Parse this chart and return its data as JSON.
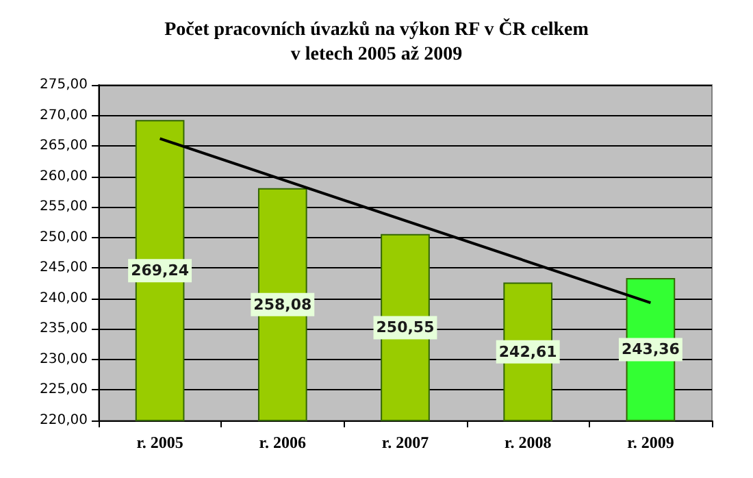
{
  "chart_data": {
    "type": "bar",
    "title": "Počet pracovních úvazků na výkon RF v ČR celkem\nv letech 2005 až 2009",
    "categories": [
      "r. 2005",
      "r. 2006",
      "r. 2007",
      "r. 2008",
      "r. 2009"
    ],
    "series": [
      {
        "values": [
          269.24,
          258.08,
          250.55,
          242.61,
          243.36
        ],
        "colors": [
          "#99cc00",
          "#99cc00",
          "#99cc00",
          "#99cc00",
          "#33ff33"
        ],
        "value_labels": [
          "269,24",
          "258,08",
          "250,55",
          "242,61",
          "243,36"
        ]
      },
      {
        "type": "line",
        "x": [
          "r. 2005",
          "r. 2009"
        ],
        "values": [
          266.2,
          239.3
        ],
        "color": "#000000",
        "marker": "none",
        "line_style": "solid"
      }
    ],
    "ylim": [
      220,
      275
    ],
    "yticks": [
      {
        "value": 220,
        "label": "220,00"
      },
      {
        "value": 225,
        "label": "225,00"
      },
      {
        "value": 230,
        "label": "230,00"
      },
      {
        "value": 235,
        "label": "235,00"
      },
      {
        "value": 240,
        "label": "240,00"
      },
      {
        "value": 245,
        "label": "245,00"
      },
      {
        "value": 250,
        "label": "250,00"
      },
      {
        "value": 255,
        "label": "255,00"
      },
      {
        "value": 260,
        "label": "260,00"
      },
      {
        "value": 265,
        "label": "265,00"
      },
      {
        "value": 270,
        "label": "270,00"
      },
      {
        "value": 275,
        "label": "275,00"
      }
    ],
    "grid": "y"
  }
}
